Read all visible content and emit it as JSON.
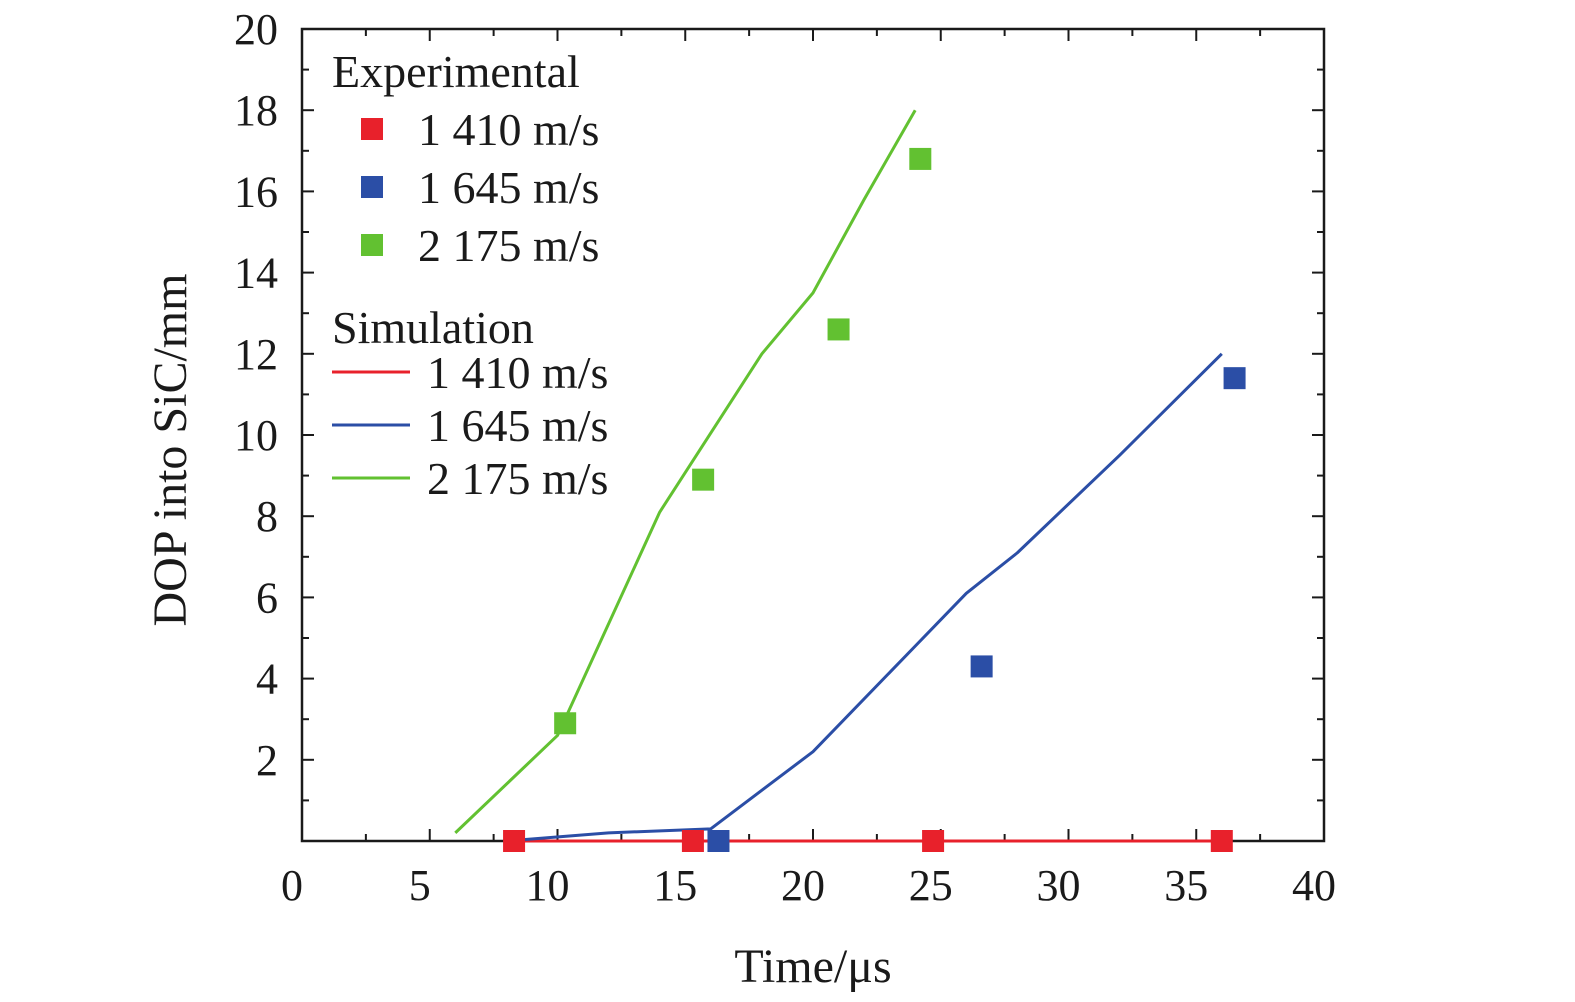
{
  "chart_data": {
    "type": "line",
    "xlabel": "Time/μs",
    "ylabel": "DOP into SiC/mm",
    "xlim": [
      0,
      40
    ],
    "ylim": [
      0,
      20
    ],
    "x_ticks": [
      0,
      5,
      10,
      15,
      20,
      25,
      30,
      35,
      40
    ],
    "x_tick_labels": [
      "0",
      "5",
      "10",
      "15",
      "20",
      "25",
      "30",
      "35",
      "40"
    ],
    "y_ticks": [
      2,
      4,
      6,
      8,
      10,
      12,
      14,
      16,
      18,
      20
    ],
    "y_tick_labels": [
      "2",
      "4",
      "6",
      "8",
      "10",
      "12",
      "14",
      "16",
      "18",
      "20"
    ],
    "grid": false,
    "legend_position": "top-left",
    "legend": {
      "experimental_title": "Experimental",
      "simulation_title": "Simulation"
    },
    "colors": {
      "red": "#e8212b",
      "blue": "#2b4ea6",
      "green": "#62c131"
    },
    "experimental_series": [
      {
        "name": "1 410 m/s",
        "color": "#e8212b",
        "marker": "square",
        "x": [
          8.3,
          15.3,
          24.7,
          36.0
        ],
        "y": [
          0.0,
          0.0,
          0.0,
          0.0
        ]
      },
      {
        "name": "1 645 m/s",
        "color": "#2b4ea6",
        "marker": "square",
        "x": [
          16.3,
          26.6,
          36.5
        ],
        "y": [
          0.0,
          4.3,
          11.4
        ]
      },
      {
        "name": "2 175 m/s",
        "color": "#62c131",
        "marker": "square",
        "x": [
          10.3,
          15.7,
          21.0,
          24.2
        ],
        "y": [
          2.9,
          8.9,
          12.6,
          16.8
        ]
      }
    ],
    "simulation_series": [
      {
        "name": "1 410 m/s",
        "color": "#e8212b",
        "x": [
          8.0,
          12.0,
          16.0,
          20.0,
          24.0,
          28.0,
          32.0,
          36.0
        ],
        "y": [
          0.0,
          0.0,
          0.0,
          0.0,
          0.0,
          0.0,
          0.0,
          0.0
        ]
      },
      {
        "name": "1 645 m/s",
        "color": "#2b4ea6",
        "x": [
          8.0,
          12.0,
          16.0,
          20.0,
          24.0,
          26.0,
          28.0,
          32.0,
          36.0
        ],
        "y": [
          0.0,
          0.2,
          0.3,
          2.2,
          4.8,
          6.1,
          7.1,
          9.5,
          12.0
        ]
      },
      {
        "name": "2 175 m/s",
        "color": "#62c131",
        "x": [
          6.0,
          10.0,
          14.0,
          18.0,
          20.0,
          22.0,
          24.0
        ],
        "y": [
          0.2,
          2.6,
          8.1,
          12.0,
          13.5,
          15.8,
          18.0
        ]
      }
    ]
  }
}
